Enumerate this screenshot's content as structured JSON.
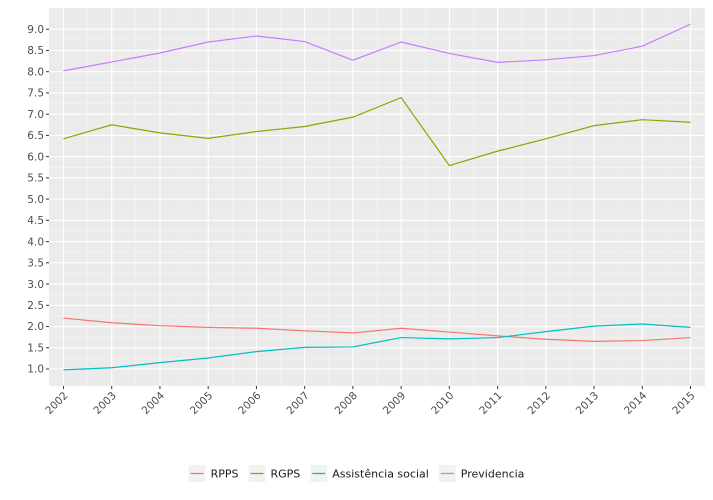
{
  "chart_data": {
    "type": "line",
    "title": "",
    "xlabel": "",
    "ylabel": "",
    "x": [
      2002,
      2003,
      2004,
      2005,
      2006,
      2007,
      2008,
      2009,
      2010,
      2011,
      2012,
      2013,
      2014,
      2015
    ],
    "x_tick_labels": [
      "2002",
      "2003",
      "2004",
      "2005",
      "2006",
      "2007",
      "2008",
      "2009",
      "2010",
      "2011",
      "2012",
      "2013",
      "2014",
      "2015"
    ],
    "ylim": [
      0.6,
      9.5
    ],
    "y_ticks": [
      1.0,
      1.5,
      2.0,
      2.5,
      3.0,
      3.5,
      4.0,
      4.5,
      5.0,
      5.5,
      6.0,
      6.5,
      7.0,
      7.5,
      8.0,
      8.5,
      9.0
    ],
    "y_tick_labels": [
      "1.0",
      "1.5",
      "2.0",
      "2.5",
      "3.0",
      "3.5",
      "4.0",
      "4.5",
      "5.0",
      "5.5",
      "6.0",
      "6.5",
      "7.0",
      "7.5",
      "8.0",
      "8.5",
      "9.0"
    ],
    "grid": true,
    "legend_position": "bottom",
    "series": [
      {
        "name": "RPPS",
        "color": "#F8766D",
        "values": [
          2.2,
          2.09,
          2.02,
          1.98,
          1.96,
          1.9,
          1.85,
          1.96,
          1.87,
          1.78,
          1.7,
          1.65,
          1.67,
          1.74
        ]
      },
      {
        "name": "RGPS",
        "color": "#7CAE00",
        "values": [
          6.42,
          6.75,
          6.56,
          6.43,
          6.59,
          6.71,
          6.93,
          7.39,
          5.79,
          6.13,
          6.42,
          6.73,
          6.87,
          6.81
        ]
      },
      {
        "name": "Assistência social",
        "color": "#00BFC4",
        "values": [
          0.98,
          1.03,
          1.15,
          1.26,
          1.41,
          1.51,
          1.52,
          1.74,
          1.71,
          1.74,
          1.88,
          2.01,
          2.06,
          1.98
        ]
      },
      {
        "name": "Previdencia",
        "color": "#C77CFF",
        "values": [
          8.02,
          8.23,
          8.44,
          8.7,
          8.84,
          8.71,
          8.27,
          8.7,
          8.43,
          8.22,
          8.28,
          8.38,
          8.6,
          9.12
        ]
      }
    ]
  }
}
